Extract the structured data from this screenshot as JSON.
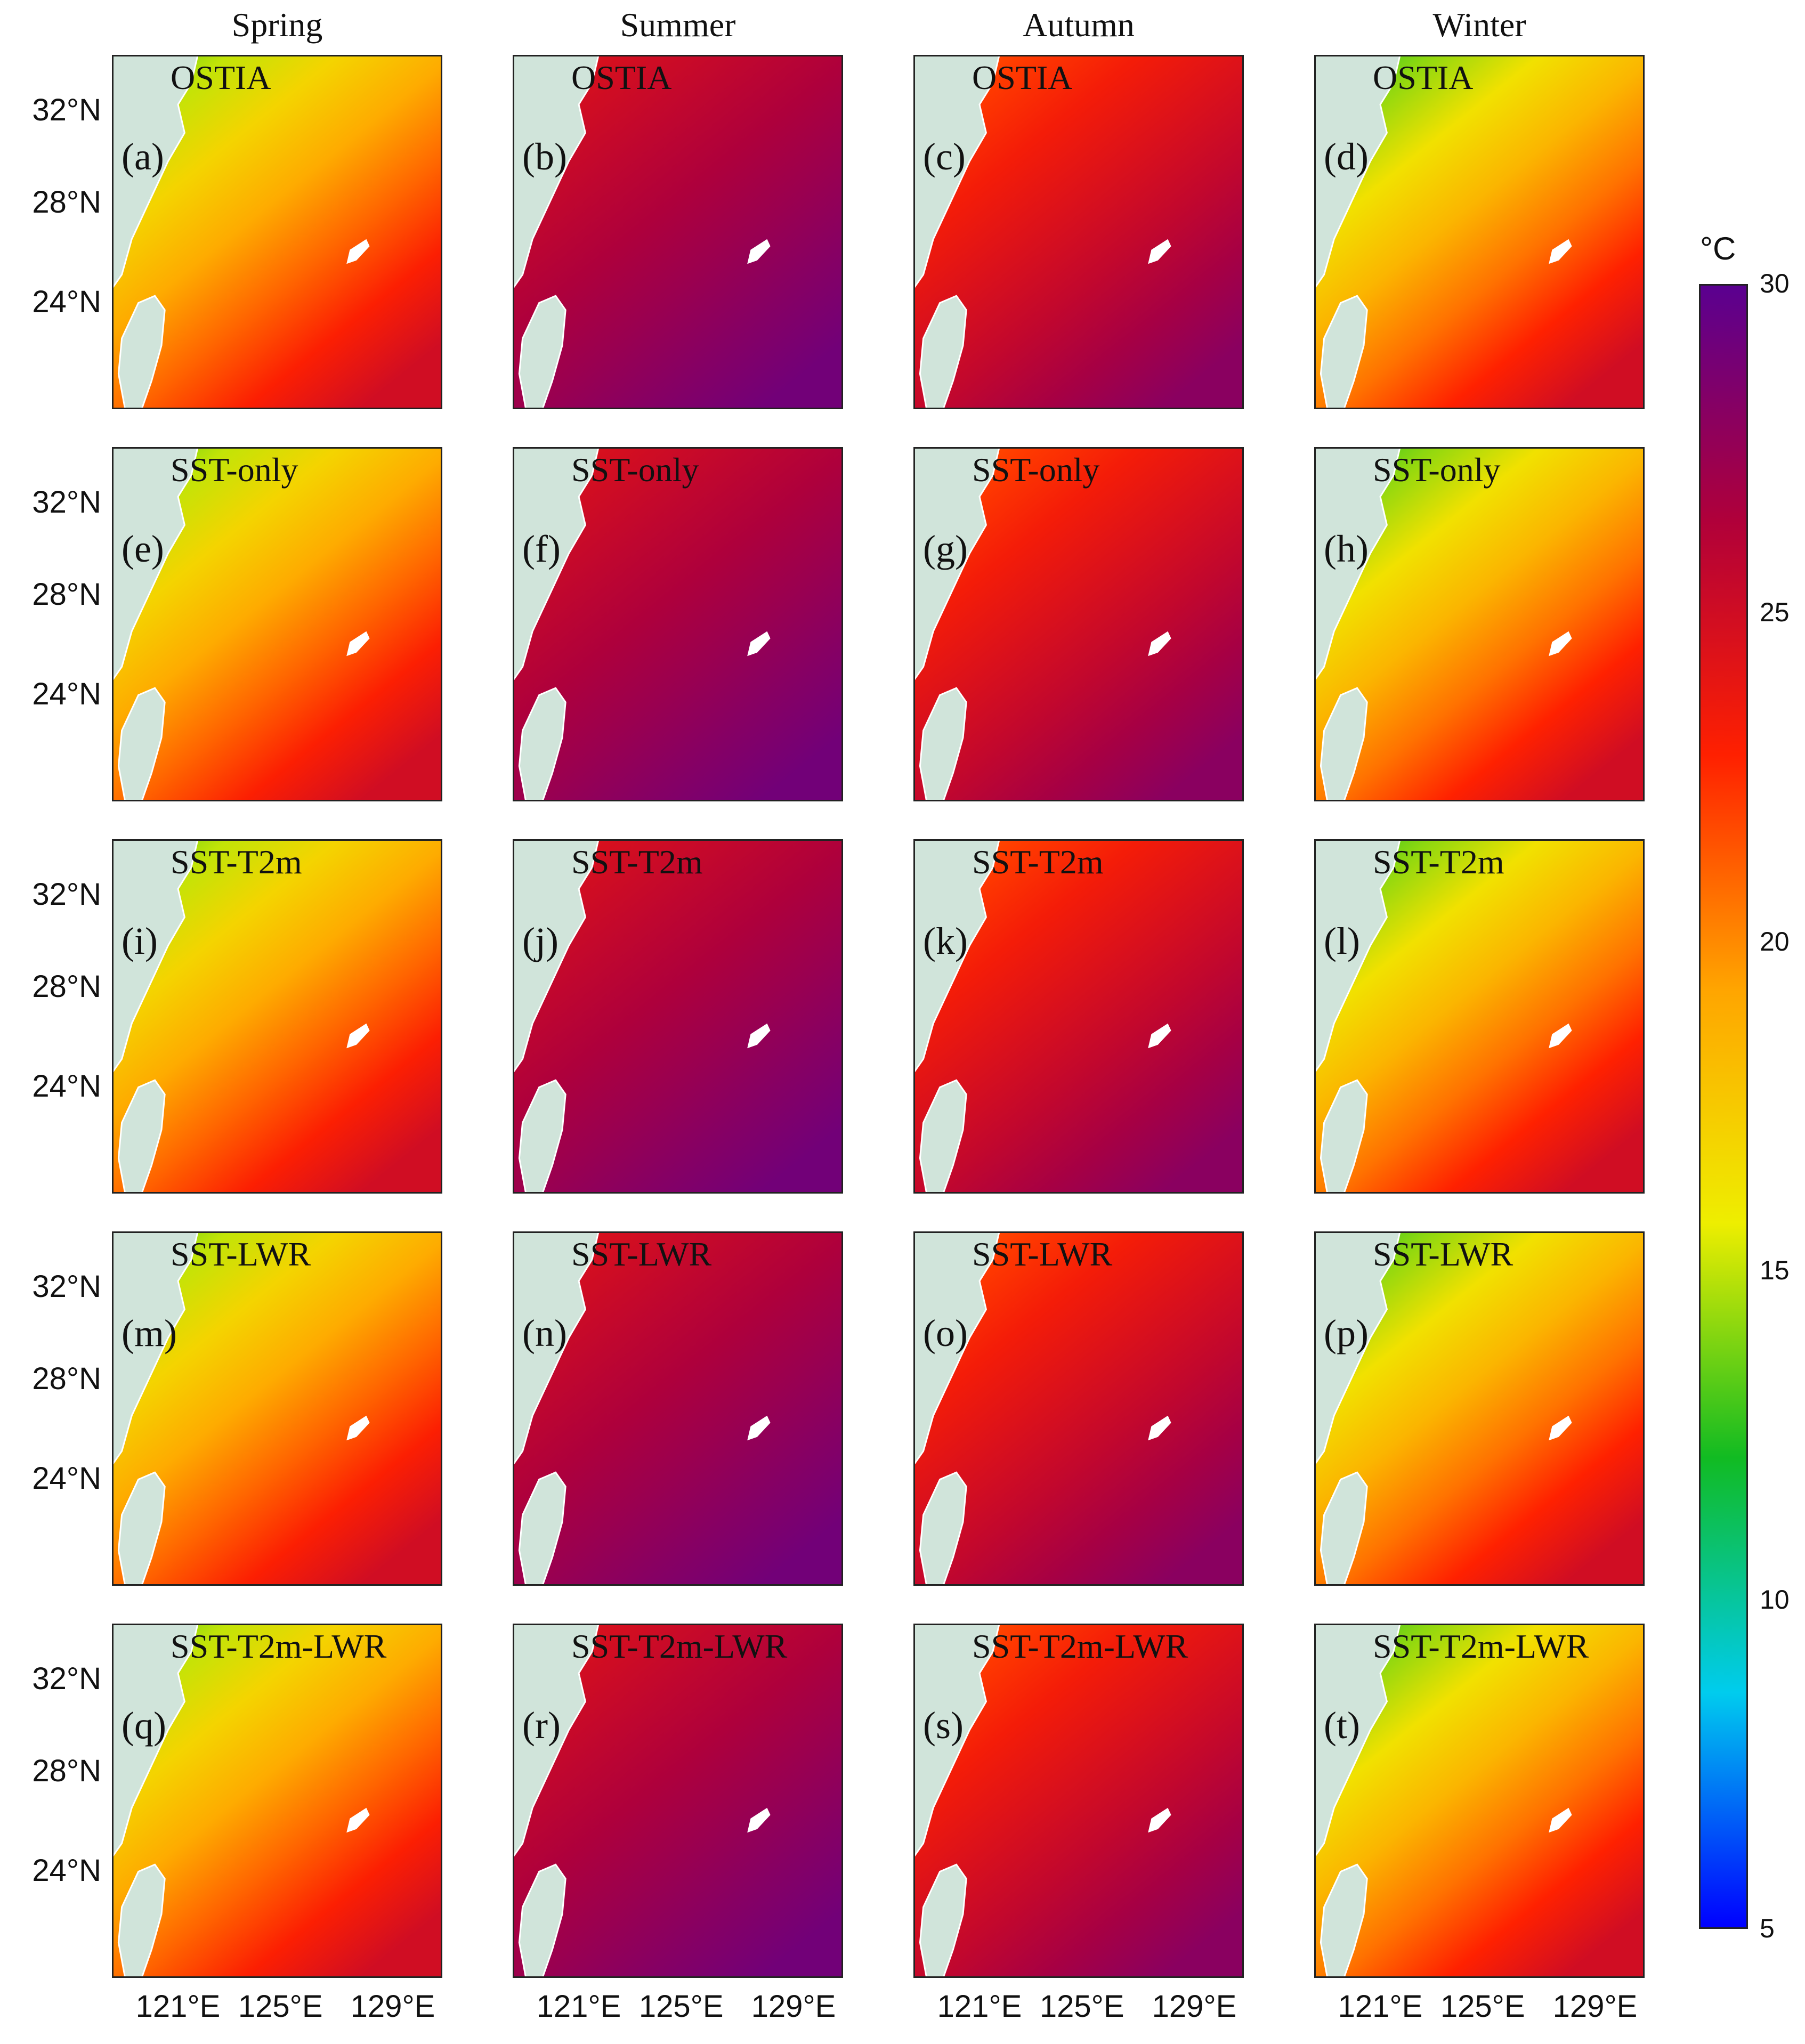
{
  "columns": [
    "Spring",
    "Summer",
    "Autumn",
    "Winter"
  ],
  "rows": [
    "OSTIA",
    "SST-only",
    "SST-T2m",
    "SST-LWR",
    "SST-T2m-LWR"
  ],
  "panel_letters": [
    "(a)",
    "(b)",
    "(c)",
    "(d)",
    "(e)",
    "(f)",
    "(g)",
    "(h)",
    "(i)",
    "(j)",
    "(k)",
    "(l)",
    "(m)",
    "(n)",
    "(o)",
    "(p)",
    "(q)",
    "(r)",
    "(s)",
    "(t)"
  ],
  "lat_labels": [
    "32°N",
    "28°N",
    "24°N"
  ],
  "lon_labels": [
    "121°E",
    "125°E",
    "129°E"
  ],
  "colorbar": {
    "unit": "°C",
    "min": 5,
    "max": 30,
    "ticks": [
      "30",
      "25",
      "20",
      "15",
      "10",
      "5"
    ],
    "colors": [
      "#0000ff",
      "#00ccee",
      "#11bb22",
      "#eeee00",
      "#ffa500",
      "#ff2000",
      "#b0003a",
      "#5a0090"
    ]
  },
  "map_extent": {
    "lon": [
      120,
      130
    ],
    "lat": [
      22.5,
      32.5
    ]
  },
  "season_sst_ranges_degC": {
    "Spring": [
      13,
      25
    ],
    "Summer": [
      24,
      29
    ],
    "Autumn": [
      21,
      28
    ],
    "Winter": [
      12,
      25
    ]
  },
  "land_color": "#d0e4da"
}
